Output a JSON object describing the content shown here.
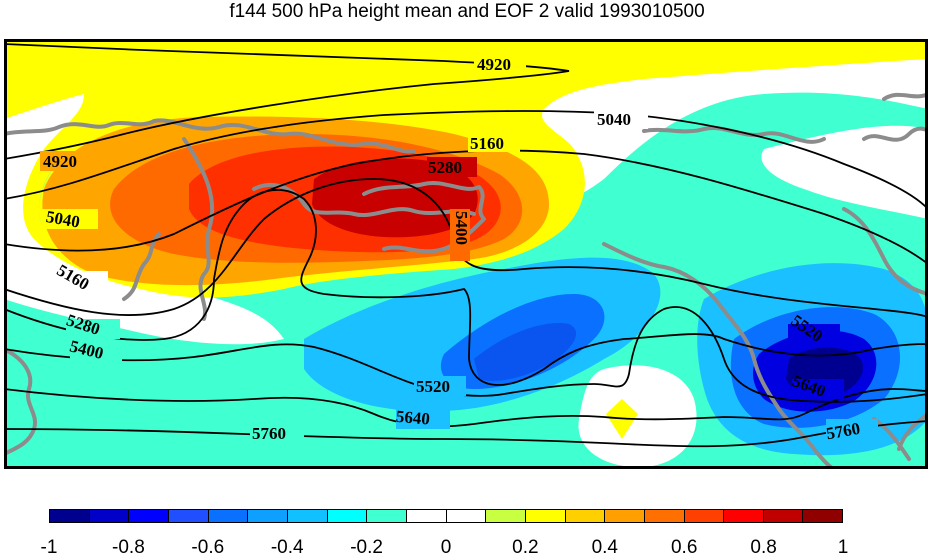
{
  "title": "f144 500 hPa height mean and EOF 2 valid 1993010500",
  "contour_labels": [
    "4920",
    "4920",
    "5040",
    "5040",
    "5160",
    "5160",
    "5280",
    "5280",
    "5400",
    "5400",
    "5520",
    "5520",
    "5640",
    "5640",
    "5760",
    "5760"
  ],
  "colorbar": {
    "colors": [
      "#00008f",
      "#0000c8",
      "#0000ff",
      "#1f4fff",
      "#0a70ff",
      "#0da0ff",
      "#10c0ff",
      "#00ffff",
      "#40ffd0",
      "#ffffff",
      "#ffffff",
      "#c8ff40",
      "#ffff00",
      "#ffd000",
      "#ffa000",
      "#ff7000",
      "#ff4000",
      "#ff0000",
      "#c00000",
      "#900000"
    ],
    "ticks": [
      "-1",
      "-0.8",
      "-0.6",
      "-0.4",
      "-0.2",
      "0",
      "0.2",
      "0.4",
      "0.6",
      "0.8",
      "1"
    ]
  },
  "fill_colors": {
    "yellow": "#ffff00",
    "orange": "#ffa500",
    "orange_red": "#ff6a00",
    "red": "#ff3000",
    "dark_red": "#c80000",
    "turquoise": "#40ffd0",
    "light_blue": "#1ac0ff",
    "blue": "#0a70ff",
    "dark_blue": "#0000e0",
    "navy": "#000090",
    "coastline": "#8c8c8c"
  }
}
